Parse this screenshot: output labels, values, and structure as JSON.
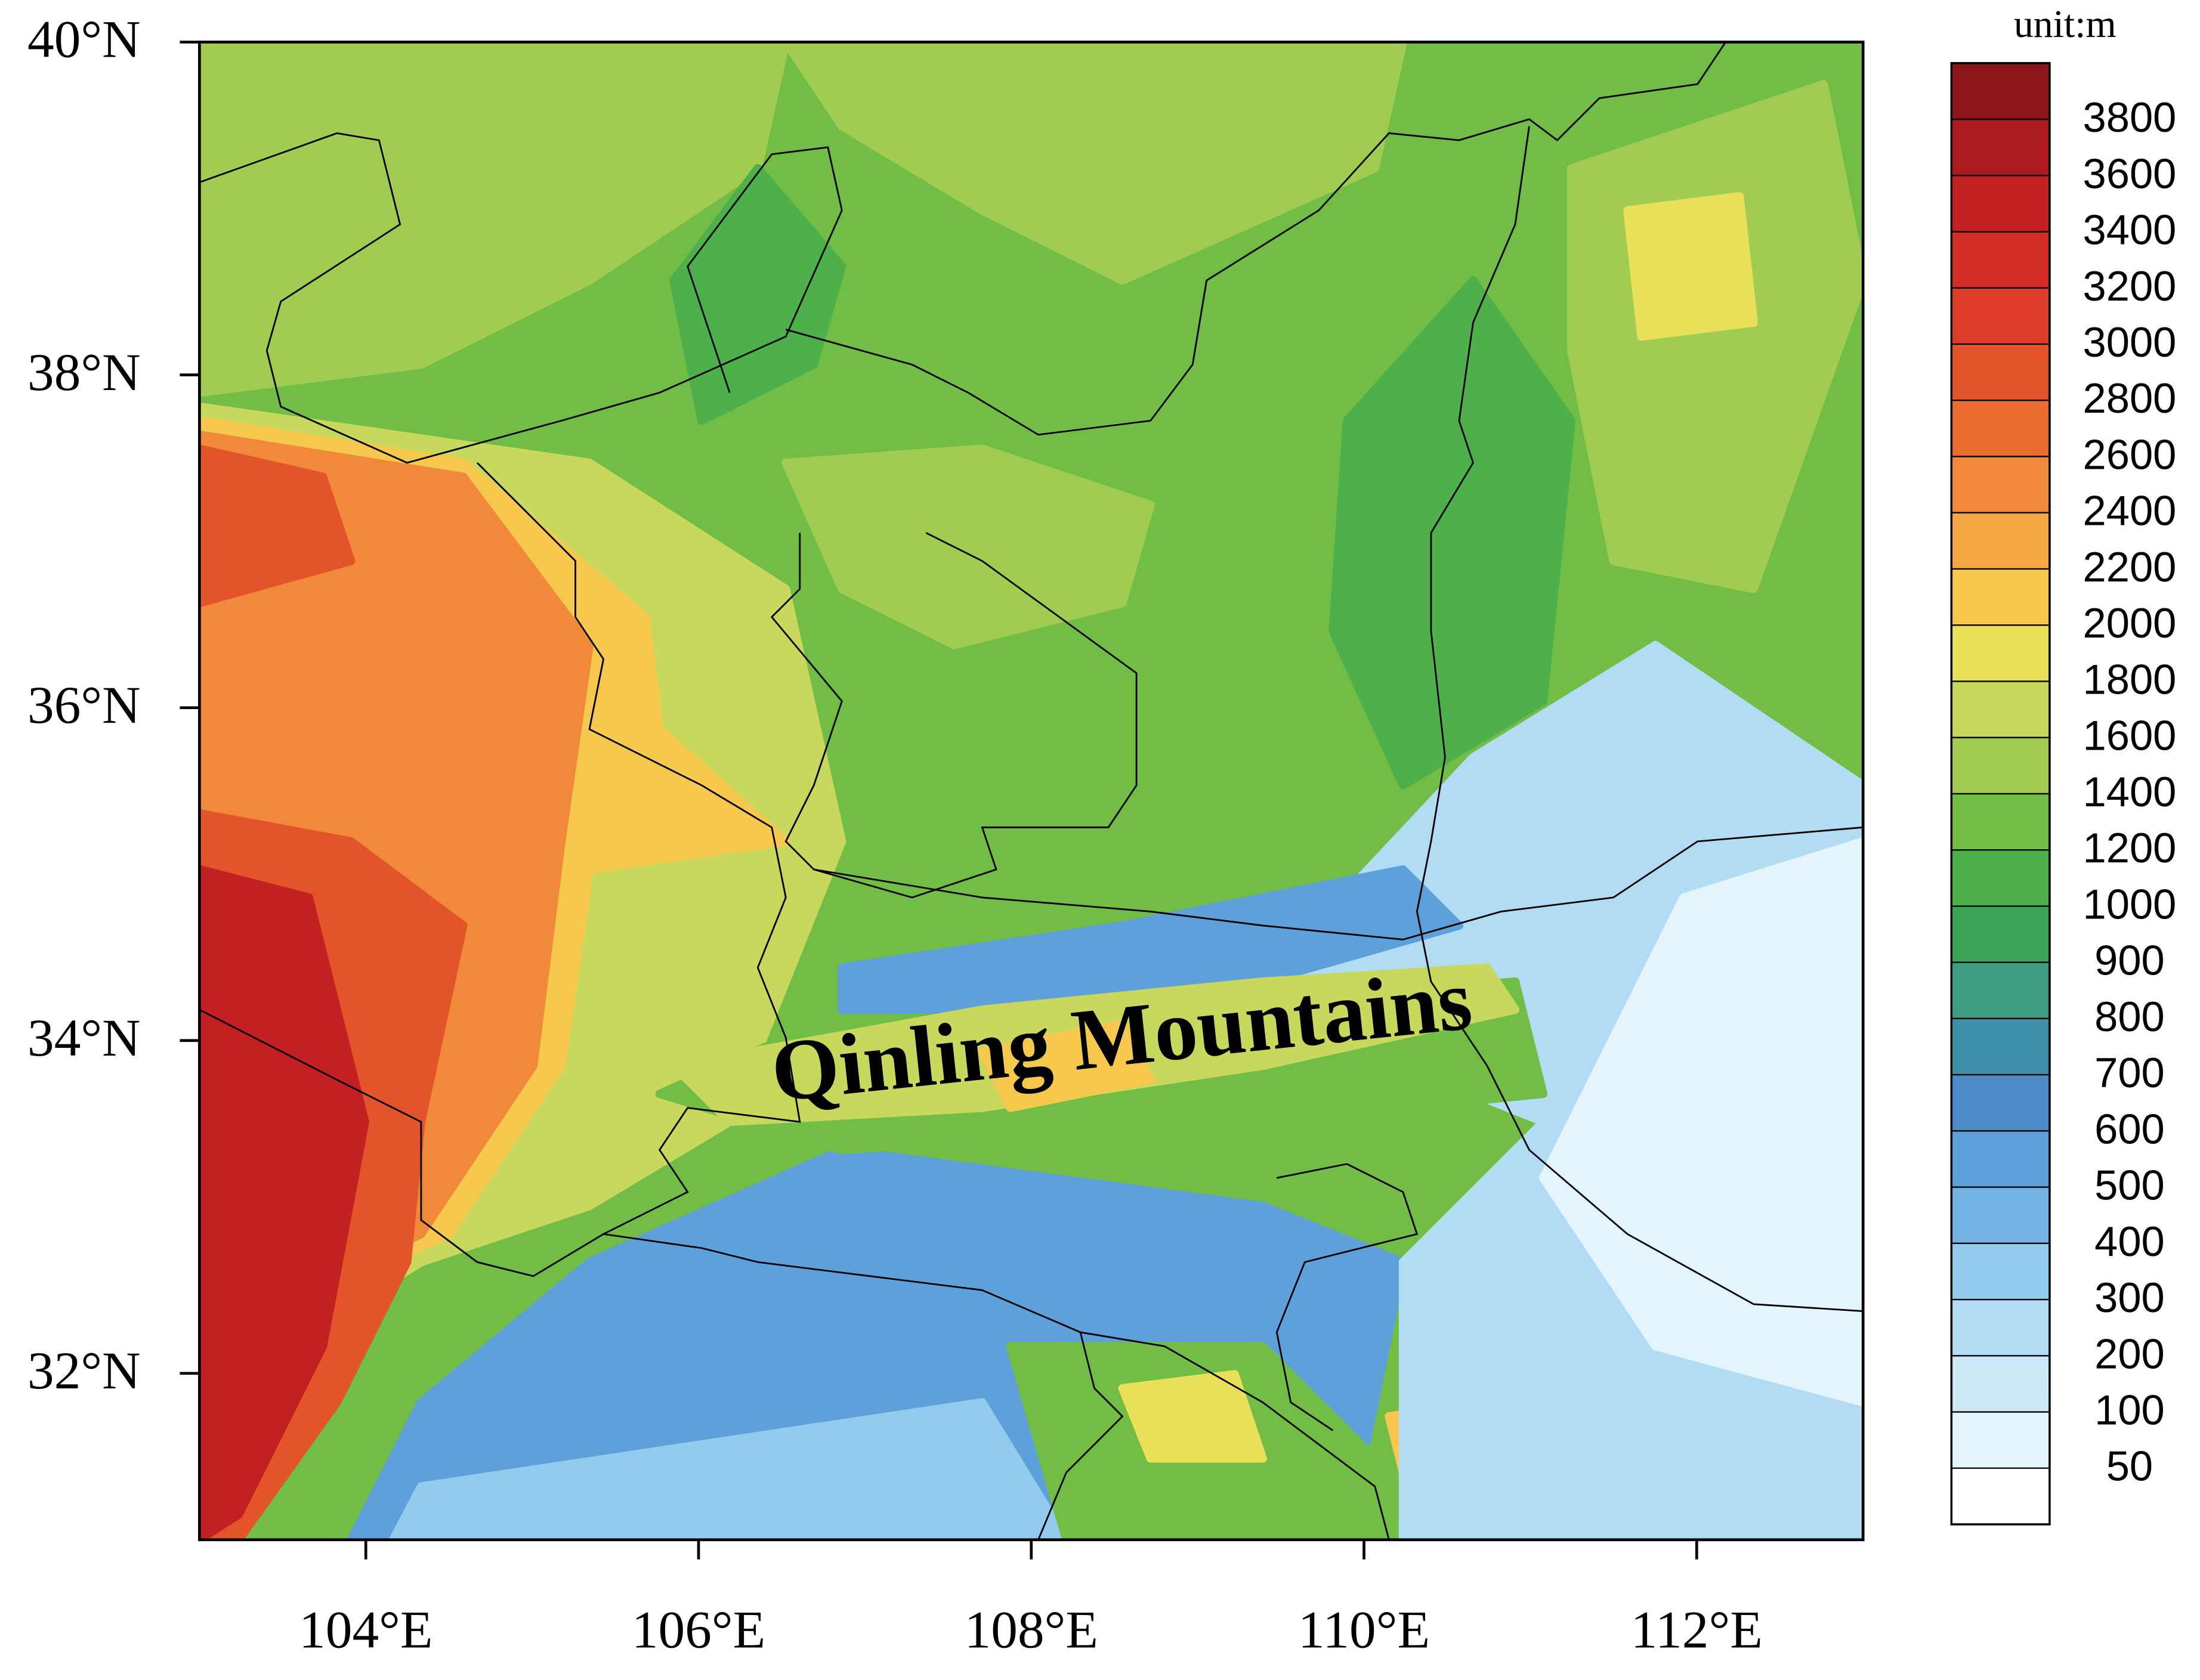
{
  "map": {
    "unit_label": "unit:m",
    "annotation": "Qinling Mountains",
    "xlim": [
      103,
      113
    ],
    "ylim": [
      31,
      40
    ],
    "xticks": [
      {
        "value": 104,
        "label": "104°E"
      },
      {
        "value": 106,
        "label": "106°E"
      },
      {
        "value": 108,
        "label": "108°E"
      },
      {
        "value": 110,
        "label": "110°E"
      },
      {
        "value": 112,
        "label": "112°E"
      }
    ],
    "yticks": [
      {
        "value": 32,
        "label": "32°N"
      },
      {
        "value": 34,
        "label": "34°N"
      },
      {
        "value": 36,
        "label": "36°N"
      },
      {
        "value": 38,
        "label": "38°N"
      },
      {
        "value": 40,
        "label": "40°N"
      }
    ],
    "colorbar": {
      "levels": [
        50,
        100,
        200,
        300,
        400,
        500,
        600,
        700,
        800,
        900,
        1000,
        1200,
        1400,
        1600,
        1800,
        2000,
        2200,
        2400,
        2600,
        2800,
        3000,
        3200,
        3400,
        3600,
        3800
      ],
      "colors": [
        "#ffffff",
        "#e4f4fc",
        "#cde9f8",
        "#b2dcf3",
        "#92cbee",
        "#74b4e4",
        "#5ea1da",
        "#4d8bc8",
        "#3f8fa8",
        "#3f9c82",
        "#3ca458",
        "#4eb04a",
        "#72bd46",
        "#a0cc52",
        "#c8d85c",
        "#e9e05a",
        "#f6c84e",
        "#f5a844",
        "#f08a3a",
        "#ea6c30",
        "#e4542b",
        "#dc3c28",
        "#d42c26",
        "#c32023",
        "#aa1a1f",
        "#8c1519"
      ]
    }
  }
}
